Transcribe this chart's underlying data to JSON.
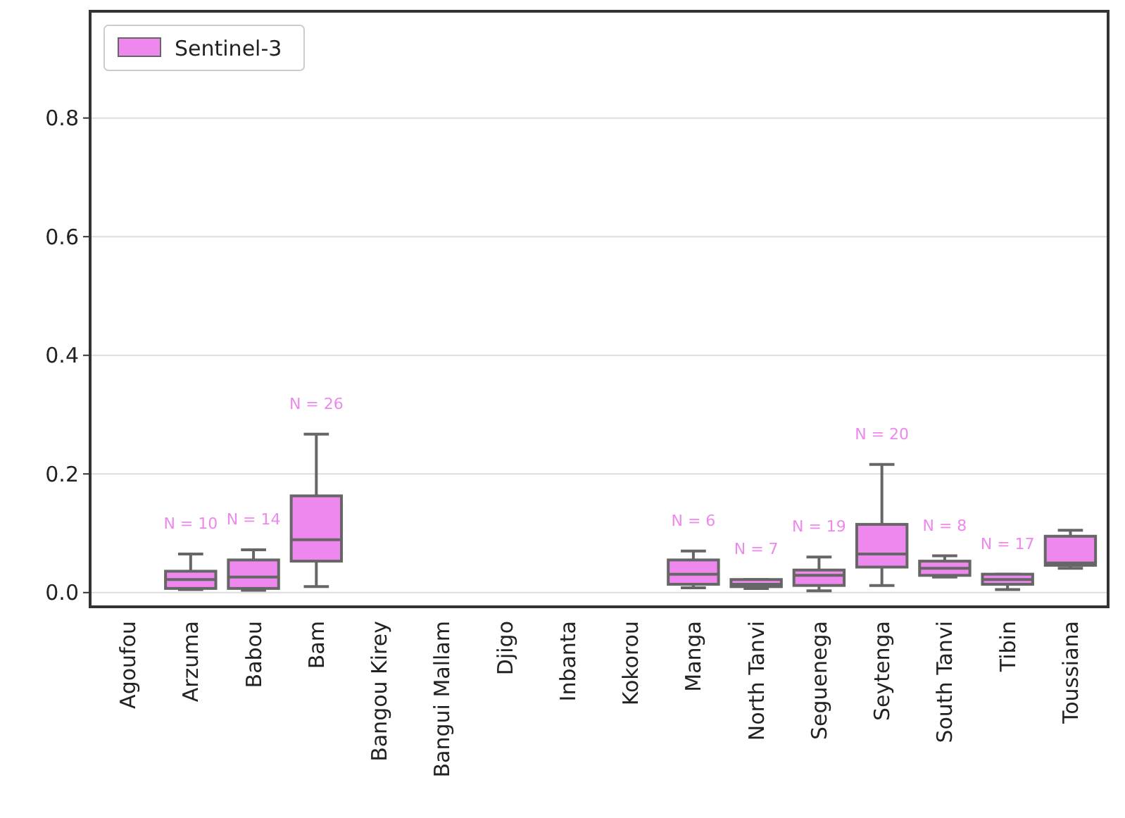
{
  "chart_data": {
    "type": "box",
    "categories": [
      "Agoufou",
      "Arzuma",
      "Babou",
      "Bam",
      "Bangou Kirey",
      "Bangui Mallam",
      "Djigo",
      "Inbanta",
      "Kokorou",
      "Manga",
      "North Tanvi",
      "Seguenega",
      "Seytenga",
      "South Tanvi",
      "Tibin",
      "Toussiana"
    ],
    "series": [
      {
        "name": "Sentinel-3",
        "color": "#ee88ee",
        "boxes": [
          null,
          {
            "low": 0.005,
            "q1": 0.007,
            "median": 0.022,
            "q3": 0.036,
            "high": 0.065
          },
          {
            "low": 0.004,
            "q1": 0.007,
            "median": 0.026,
            "q3": 0.055,
            "high": 0.072
          },
          {
            "low": 0.01,
            "q1": 0.053,
            "median": 0.089,
            "q3": 0.163,
            "high": 0.267
          },
          null,
          null,
          null,
          null,
          null,
          {
            "low": 0.008,
            "q1": 0.014,
            "median": 0.031,
            "q3": 0.055,
            "high": 0.07
          },
          {
            "low": 0.007,
            "q1": 0.01,
            "median": 0.014,
            "q3": 0.022,
            "high": 0.022
          },
          {
            "low": 0.003,
            "q1": 0.012,
            "median": 0.029,
            "q3": 0.038,
            "high": 0.06
          },
          {
            "low": 0.012,
            "q1": 0.043,
            "median": 0.065,
            "q3": 0.115,
            "high": 0.216
          },
          {
            "low": 0.026,
            "q1": 0.029,
            "median": 0.041,
            "q3": 0.053,
            "high": 0.062
          },
          {
            "low": 0.005,
            "q1": 0.014,
            "median": 0.022,
            "q3": 0.031,
            "high": 0.031
          },
          {
            "low": 0.041,
            "q1": 0.046,
            "median": 0.05,
            "q3": 0.095,
            "high": 0.105
          }
        ]
      }
    ],
    "ylim": [
      -0.024,
      0.98
    ],
    "yticks": [
      {
        "value": 0,
        "label": "0.0"
      },
      {
        "value": 0.2,
        "label": "0.2"
      },
      {
        "value": 0.4,
        "label": "0.4"
      },
      {
        "value": 0.6,
        "label": "0.6"
      },
      {
        "value": 0.8,
        "label": "0.8"
      }
    ],
    "grid": "y",
    "legend": "top left",
    "annotations": [
      "N = 10",
      "N = 14",
      "N = 26",
      "N = 6",
      "N = 7",
      "N = 19",
      "N = 20",
      "N = 8",
      "N = 17"
    ]
  }
}
